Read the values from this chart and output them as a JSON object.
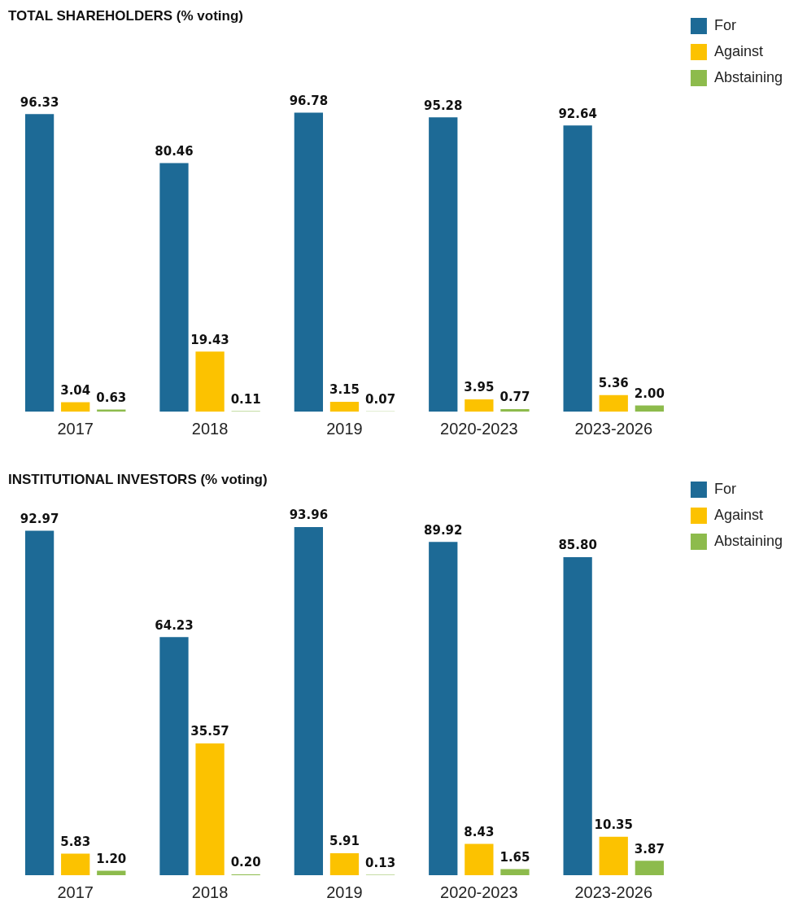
{
  "chart_data": [
    {
      "type": "bar",
      "title": "TOTAL SHAREHOLDERS (% voting)",
      "categories": [
        "2017",
        "2018",
        "2019",
        "2020-2023",
        "2023-2026"
      ],
      "legend": "top right",
      "grid": false,
      "tick_labels": "x",
      "series": [
        {
          "name": "For",
          "color": "#1d6a96",
          "values": [
            96.33,
            80.46,
            96.78,
            95.28,
            92.64
          ],
          "value_labels": [
            "96.33",
            "80.46",
            "96.78",
            "95.28",
            "92.64"
          ]
        },
        {
          "name": "Against",
          "color": "#fcc200",
          "values": [
            3.04,
            19.43,
            3.15,
            3.95,
            5.36
          ],
          "value_labels": [
            "3.04",
            "19.43",
            "3.15",
            "3.95",
            "5.36"
          ]
        },
        {
          "name": "Abstaining",
          "color": "#8dbb4c",
          "values": [
            0.63,
            0.11,
            0.07,
            0.77,
            2.0
          ],
          "value_labels": [
            "0.63",
            "0.11",
            "0.07",
            "0.77",
            "2.00"
          ]
        }
      ]
    },
    {
      "type": "bar",
      "title": "INSTITUTIONAL INVESTORS (% voting)",
      "categories": [
        "2017",
        "2018",
        "2019",
        "2020-2023",
        "2023-2026"
      ],
      "legend": "top right",
      "grid": false,
      "tick_labels": "x",
      "series": [
        {
          "name": "For",
          "color": "#1d6a96",
          "values": [
            92.97,
            64.23,
            93.96,
            89.92,
            85.8
          ],
          "value_labels": [
            "92.97",
            "64.23",
            "93.96",
            "89.92",
            "85.80"
          ]
        },
        {
          "name": "Against",
          "color": "#fcc200",
          "values": [
            5.83,
            35.57,
            5.91,
            8.43,
            10.35
          ],
          "value_labels": [
            "5.83",
            "35.57",
            "5.91",
            "8.43",
            "10.35"
          ]
        },
        {
          "name": "Abstaining",
          "color": "#8dbb4c",
          "values": [
            1.2,
            0.2,
            0.13,
            1.65,
            3.87
          ],
          "value_labels": [
            "1.20",
            "0.20",
            "0.13",
            "1.65",
            "3.87"
          ]
        }
      ]
    }
  ]
}
